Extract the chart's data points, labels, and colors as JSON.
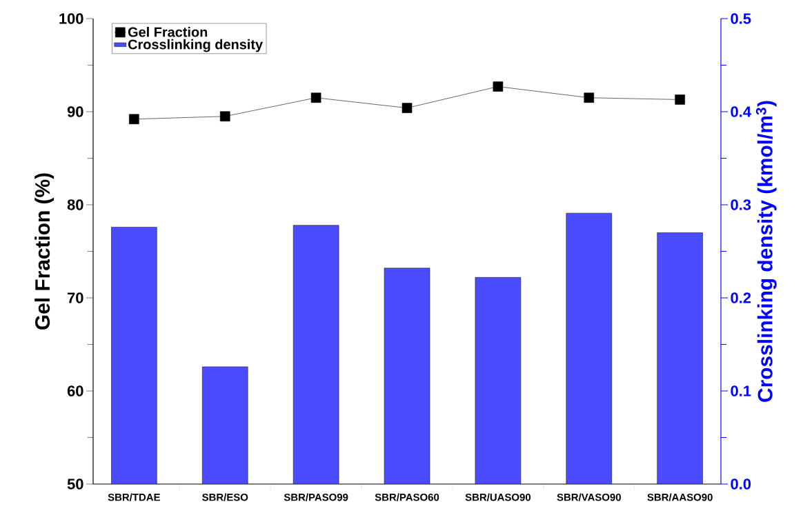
{
  "chart_data": {
    "type": "bar",
    "categories": [
      "SBR/TDAE",
      "SBR/ESO",
      "SBR/PASO99",
      "SBR/PASO60",
      "SBR/UASO90",
      "SBR/VASO90",
      "SBR/AASO90"
    ],
    "ylabel": "Gel Fraction (%)",
    "y2label": "Crosslinking density (kmol/m$^{3}$)",
    "ylim": [
      50,
      100
    ],
    "yticks": [
      50,
      60,
      70,
      80,
      90,
      100
    ],
    "y2lim": [
      0,
      0.5
    ],
    "y2ticks": [
      {
        "value": 0,
        "label": "0.0"
      },
      0.1,
      0.2,
      0.3,
      0.4,
      0.5
    ],
    "legend": "top left",
    "marker": "square",
    "grid": false,
    "series": [
      {
        "name": "Gel Fraction",
        "type": "line",
        "color": "#000000",
        "values": [
          89.2,
          89.5,
          91.5,
          90.4,
          92.7,
          91.5,
          91.3
        ]
      },
      {
        "name": "Crosslinking density",
        "axis": "y2",
        "color": "#4b4bff",
        "values": [
          0.276,
          0.126,
          0.278,
          0.232,
          0.222,
          0.291,
          0.27
        ]
      }
    ]
  }
}
